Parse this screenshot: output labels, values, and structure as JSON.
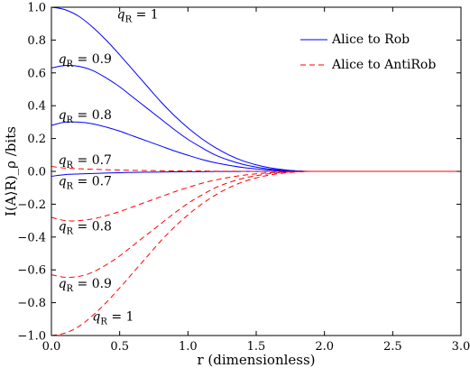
{
  "chart_data": {
    "type": "line",
    "xlabel": "r (dimensionless)",
    "ylabel": "I(A⟩R)_ρ /bits",
    "xlim": [
      0,
      3
    ],
    "ylim": [
      -1,
      1
    ],
    "xticks": [
      "0.0",
      "0.5",
      "1.0",
      "1.5",
      "2.0",
      "2.5",
      "3.0"
    ],
    "yticks": [
      "1.0",
      "0.8",
      "0.6",
      "0.4",
      "0.2",
      "0.0",
      "−0.2",
      "−0.4",
      "−0.6",
      "−0.8",
      "−1.0"
    ],
    "grid": false,
    "legend_position": "top-right",
    "legend": [
      {
        "label": "Alice to Rob",
        "color": "#0000ff",
        "dash": "solid"
      },
      {
        "label": "Alice to AntiRob",
        "color": "#ff0000",
        "dash": "dashed"
      }
    ],
    "x": [
      0.0,
      0.1,
      0.2,
      0.3,
      0.4,
      0.5,
      0.6,
      0.7,
      0.8,
      0.9,
      1.0,
      1.1,
      1.2,
      1.3,
      1.4,
      1.5,
      1.6,
      1.7,
      1.8,
      1.9,
      2.0,
      2.1,
      2.2,
      2.4,
      2.6,
      2.8,
      3.0
    ],
    "series": [
      {
        "name": "Alice to Rob",
        "q": "1",
        "color": "#0000ff",
        "dash": "solid",
        "values": [
          1.0,
          0.985,
          0.945,
          0.88,
          0.8,
          0.71,
          0.615,
          0.52,
          0.425,
          0.34,
          0.265,
          0.2,
          0.145,
          0.1,
          0.065,
          0.04,
          0.022,
          0.01,
          0.003,
          0.0,
          0.0,
          0.0,
          0.0,
          0.0,
          0.0,
          0.0,
          0.0
        ]
      },
      {
        "name": "Alice to Rob",
        "q": "0.9",
        "color": "#0000ff",
        "dash": "solid",
        "values": [
          0.63,
          0.645,
          0.64,
          0.615,
          0.57,
          0.515,
          0.45,
          0.385,
          0.32,
          0.255,
          0.195,
          0.145,
          0.1,
          0.068,
          0.043,
          0.026,
          0.014,
          0.006,
          0.002,
          0.0,
          0.0,
          0.0,
          0.0,
          0.0,
          0.0,
          0.0,
          0.0
        ]
      },
      {
        "name": "Alice to Rob",
        "q": "0.8",
        "color": "#0000ff",
        "dash": "solid",
        "values": [
          0.28,
          0.3,
          0.3,
          0.29,
          0.27,
          0.245,
          0.215,
          0.185,
          0.155,
          0.125,
          0.098,
          0.073,
          0.053,
          0.037,
          0.024,
          0.015,
          0.008,
          0.004,
          0.001,
          0.0,
          0.0,
          0.0,
          0.0,
          0.0,
          0.0,
          0.0,
          0.0
        ]
      },
      {
        "name": "Alice to Rob",
        "q": "0.7",
        "color": "#0000ff",
        "dash": "solid",
        "values": [
          -0.03,
          -0.02,
          -0.016,
          -0.013,
          -0.01,
          -0.008,
          -0.006,
          -0.005,
          -0.004,
          -0.003,
          -0.002,
          -0.002,
          -0.001,
          -0.001,
          0.0,
          0.0,
          0.0,
          0.0,
          0.0,
          0.0,
          0.0,
          0.0,
          0.0,
          0.0,
          0.0,
          0.0,
          0.0
        ]
      },
      {
        "name": "Alice to AntiRob",
        "q": "0.7",
        "color": "#ff0000",
        "dash": "dashed",
        "values": [
          0.03,
          0.02,
          0.016,
          0.013,
          0.01,
          0.008,
          0.006,
          0.005,
          0.004,
          0.003,
          0.002,
          0.002,
          0.001,
          0.001,
          0.0,
          0.0,
          0.0,
          0.0,
          0.0,
          0.0,
          0.0,
          0.0,
          0.0,
          0.0,
          0.0,
          0.0,
          0.0
        ]
      },
      {
        "name": "Alice to AntiRob",
        "q": "0.8",
        "color": "#ff0000",
        "dash": "dashed",
        "values": [
          -0.28,
          -0.3,
          -0.3,
          -0.29,
          -0.27,
          -0.245,
          -0.215,
          -0.185,
          -0.155,
          -0.125,
          -0.098,
          -0.073,
          -0.053,
          -0.037,
          -0.024,
          -0.015,
          -0.008,
          -0.004,
          -0.001,
          0.0,
          0.0,
          0.0,
          0.0,
          0.0,
          0.0,
          0.0,
          0.0
        ]
      },
      {
        "name": "Alice to AntiRob",
        "q": "0.9",
        "color": "#ff0000",
        "dash": "dashed",
        "values": [
          -0.63,
          -0.645,
          -0.64,
          -0.615,
          -0.57,
          -0.515,
          -0.45,
          -0.385,
          -0.32,
          -0.255,
          -0.195,
          -0.145,
          -0.1,
          -0.068,
          -0.043,
          -0.026,
          -0.014,
          -0.006,
          -0.002,
          0.0,
          0.0,
          0.0,
          0.0,
          0.0,
          0.0,
          0.0,
          0.0
        ]
      },
      {
        "name": "Alice to AntiRob",
        "q": "1",
        "color": "#ff0000",
        "dash": "dashed",
        "values": [
          -1.0,
          -0.985,
          -0.945,
          -0.88,
          -0.8,
          -0.71,
          -0.615,
          -0.52,
          -0.425,
          -0.34,
          -0.265,
          -0.2,
          -0.145,
          -0.1,
          -0.065,
          -0.04,
          -0.022,
          -0.01,
          -0.003,
          0.0,
          0.0,
          0.0,
          0.0,
          0.0,
          0.0,
          0.0,
          0.0
        ]
      }
    ],
    "annotations": [
      {
        "text": "q_R = 1",
        "x": 0.48,
        "y": 0.93
      },
      {
        "text": "q_R = 0.9",
        "x": 0.05,
        "y": 0.66
      },
      {
        "text": "q_R = 0.8",
        "x": 0.05,
        "y": 0.32
      },
      {
        "text": "q_R = 0.7",
        "x": 0.05,
        "y": 0.045
      },
      {
        "text": "q_R = 0.7",
        "x": 0.05,
        "y": -0.085
      },
      {
        "text": "q_R = 0.8",
        "x": 0.05,
        "y": -0.36
      },
      {
        "text": "q_R = 0.9",
        "x": 0.05,
        "y": -0.71
      },
      {
        "text": "q_R = 1",
        "x": 0.3,
        "y": -0.91
      }
    ]
  }
}
